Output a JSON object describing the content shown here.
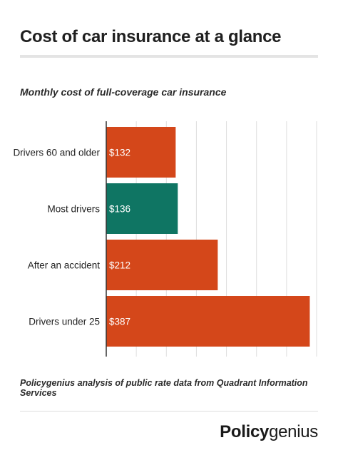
{
  "title": "Cost of car insurance at a glance",
  "subtitle": "Monthly cost of full-coverage car insurance",
  "footnote": "Policygenius analysis of public rate data from Quadrant Information Services",
  "brand": {
    "part1": "Policy",
    "part2": "genius"
  },
  "colors": {
    "bar": "#d4471a",
    "highlight": "#0f7563",
    "grid": "#dedede",
    "axis": "#333333",
    "label": "#222222",
    "value_label": "#ffffff"
  },
  "chart_data": {
    "type": "bar",
    "orientation": "horizontal",
    "title": "Monthly cost of full-coverage car insurance",
    "categories": [
      "Drivers 60 and older",
      "Most drivers",
      "After an accident",
      "Drivers under 25"
    ],
    "values": [
      132,
      136,
      212,
      387
    ],
    "value_labels": [
      "$132",
      "$136",
      "$212",
      "$387"
    ],
    "highlight_index": 1,
    "xlim": [
      0,
      400
    ],
    "grid": true,
    "legend": "none"
  }
}
